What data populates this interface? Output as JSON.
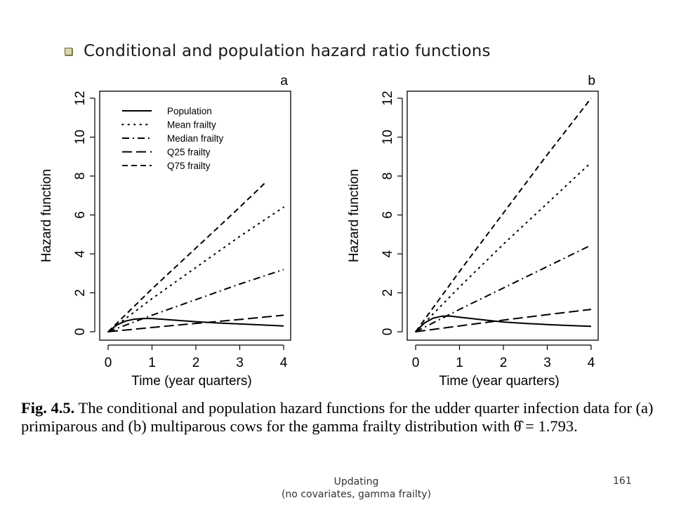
{
  "slide": {
    "heading": "Conditional and population hazard ratio functions",
    "bullet_icon": "square-bullet-icon"
  },
  "caption": {
    "fig_label": "Fig. 4.5.",
    "text": "The conditional and population hazard functions for the udder quarter infection data for (a) primiparous and (b) multiparous cows for the gamma frailty distribution with θ̂ = 1.793."
  },
  "footer": {
    "line1": "Updating",
    "line2": "(no covariates, gamma frailty)",
    "page_number": "161"
  },
  "chart_data": [
    {
      "type": "line",
      "panel_label": "a",
      "xlabel": "Time (year quarters)",
      "ylabel": "Hazard function",
      "xlim": [
        0,
        4
      ],
      "ylim": [
        0,
        12
      ],
      "xticks": [
        0,
        1,
        2,
        3,
        4
      ],
      "yticks": [
        0,
        2,
        4,
        6,
        8,
        10,
        12
      ],
      "legend_position": "top-left",
      "series": [
        {
          "name": "Population",
          "style": "solid",
          "x": [
            0,
            0.2,
            0.4,
            0.6,
            0.8,
            1.0,
            1.5,
            2.0,
            2.5,
            3.0,
            3.5,
            4.0
          ],
          "y": [
            0,
            0.35,
            0.55,
            0.65,
            0.68,
            0.68,
            0.6,
            0.52,
            0.45,
            0.4,
            0.35,
            0.3
          ]
        },
        {
          "name": "Mean frailty",
          "style": "dotted",
          "x": [
            0,
            1,
            2,
            3,
            4
          ],
          "y": [
            0,
            1.7,
            3.3,
            4.9,
            6.4
          ]
        },
        {
          "name": "Median frailty",
          "style": "dashdot",
          "x": [
            0,
            1,
            2,
            3,
            4
          ],
          "y": [
            0,
            0.85,
            1.65,
            2.45,
            3.2
          ]
        },
        {
          "name": "Q25 frailty",
          "style": "longdash",
          "x": [
            0,
            1,
            2,
            3,
            4
          ],
          "y": [
            0,
            0.22,
            0.43,
            0.63,
            0.85
          ]
        },
        {
          "name": "Q75 frailty",
          "style": "dashed",
          "x": [
            0,
            1,
            2,
            3,
            3.6
          ],
          "y": [
            0,
            2.2,
            4.3,
            6.4,
            7.7
          ]
        }
      ]
    },
    {
      "type": "line",
      "panel_label": "b",
      "xlabel": "Time (year quarters)",
      "ylabel": "Hazard function",
      "xlim": [
        0,
        4
      ],
      "ylim": [
        0,
        12
      ],
      "xticks": [
        0,
        1,
        2,
        3,
        4
      ],
      "yticks": [
        0,
        2,
        4,
        6,
        8,
        10,
        12
      ],
      "series": [
        {
          "name": "Population",
          "style": "solid",
          "x": [
            0,
            0.2,
            0.4,
            0.6,
            0.8,
            1.0,
            1.5,
            2.0,
            2.5,
            3.0,
            3.5,
            4.0
          ],
          "y": [
            0,
            0.45,
            0.7,
            0.8,
            0.8,
            0.75,
            0.62,
            0.5,
            0.43,
            0.37,
            0.32,
            0.28
          ]
        },
        {
          "name": "Mean frailty",
          "style": "dotted",
          "x": [
            0,
            1,
            2,
            3,
            4
          ],
          "y": [
            0,
            2.3,
            4.5,
            6.6,
            8.7
          ]
        },
        {
          "name": "Median frailty",
          "style": "dashdot",
          "x": [
            0,
            1,
            2,
            3,
            4
          ],
          "y": [
            0,
            1.15,
            2.25,
            3.35,
            4.45
          ]
        },
        {
          "name": "Q25 frailty",
          "style": "longdash",
          "x": [
            0,
            1,
            2,
            3,
            4
          ],
          "y": [
            0,
            0.3,
            0.6,
            0.88,
            1.15
          ]
        },
        {
          "name": "Q75 frailty",
          "style": "dashed",
          "x": [
            0,
            1,
            2,
            3,
            4
          ],
          "y": [
            0,
            3.1,
            6.1,
            9.1,
            12.0
          ]
        }
      ]
    }
  ]
}
